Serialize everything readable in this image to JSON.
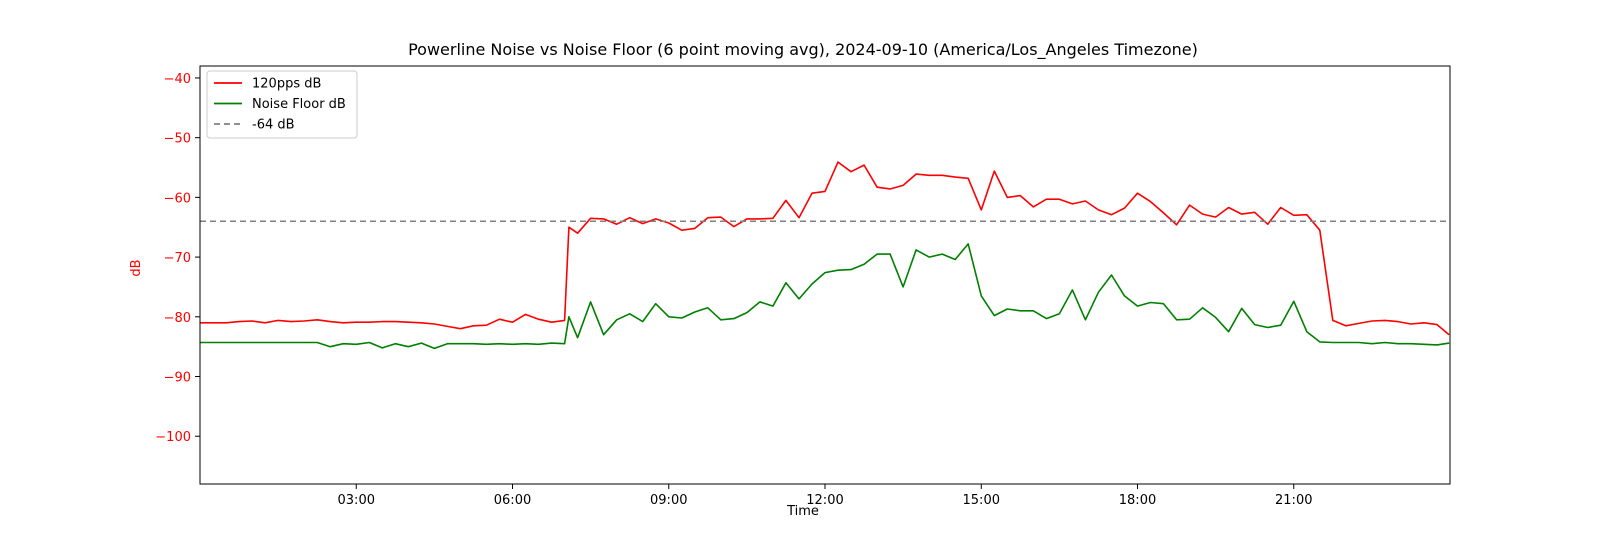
{
  "chart_data": {
    "type": "line",
    "title": "Powerline Noise vs Noise Floor (6 point moving avg), 2024-09-10 (America/Los_Angeles Timezone)",
    "xlabel": "Time",
    "ylabel": "dB",
    "xlim": [
      "00:00",
      "24:00"
    ],
    "ylim": [
      -108,
      -38
    ],
    "x_ticks": [
      "03:00",
      "06:00",
      "09:00",
      "12:00",
      "15:00",
      "18:00",
      "21:00"
    ],
    "y_ticks": [
      -40,
      -50,
      -60,
      -70,
      -80,
      -90,
      -100
    ],
    "y_tick_labels": [
      "−40",
      "−50",
      "−60",
      "−70",
      "−80",
      "−90",
      "−100"
    ],
    "grid": false,
    "legend_position": "top-left",
    "colors": {
      "ytick": "#ff0000",
      "ylabel": "#ff0000",
      "series_120pps": "#ff0000",
      "series_noise_floor": "#008000",
      "reference": "#808080"
    },
    "series": [
      {
        "name": "120pps dB",
        "color": "#ff0000",
        "x": [
          "00:00",
          "00:15",
          "00:30",
          "00:45",
          "01:00",
          "01:15",
          "01:30",
          "01:45",
          "02:00",
          "02:15",
          "02:30",
          "02:45",
          "03:00",
          "03:15",
          "03:30",
          "03:45",
          "04:00",
          "04:15",
          "04:30",
          "04:45",
          "05:00",
          "05:15",
          "05:30",
          "05:45",
          "06:00",
          "06:15",
          "06:30",
          "06:45",
          "07:00",
          "07:05",
          "07:15",
          "07:30",
          "07:45",
          "08:00",
          "08:15",
          "08:30",
          "08:45",
          "09:00",
          "09:15",
          "09:30",
          "09:45",
          "10:00",
          "10:15",
          "10:30",
          "10:45",
          "11:00",
          "11:15",
          "11:30",
          "11:45",
          "12:00",
          "12:15",
          "12:30",
          "12:45",
          "13:00",
          "13:15",
          "13:30",
          "13:45",
          "14:00",
          "14:15",
          "14:30",
          "14:45",
          "15:00",
          "15:15",
          "15:30",
          "15:45",
          "16:00",
          "16:15",
          "16:30",
          "16:45",
          "17:00",
          "17:15",
          "17:30",
          "17:45",
          "18:00",
          "18:15",
          "18:30",
          "18:45",
          "19:00",
          "19:15",
          "19:30",
          "19:45",
          "20:00",
          "20:15",
          "20:30",
          "20:45",
          "21:00",
          "21:15",
          "21:30",
          "21:45",
          "22:00",
          "22:15",
          "22:30",
          "22:45",
          "23:00",
          "23:15",
          "23:30",
          "23:45",
          "23:59"
        ],
        "values": [
          -81,
          -81,
          -81,
          -80.8,
          -80.7,
          -81,
          -80.6,
          -80.8,
          -80.7,
          -80.5,
          -80.8,
          -81,
          -80.9,
          -80.9,
          -80.8,
          -80.8,
          -80.9,
          -81,
          -81.2,
          -81.6,
          -82,
          -81.5,
          -81.4,
          -80.4,
          -80.9,
          -79.6,
          -80.4,
          -80.9,
          -80.6,
          -65,
          -66,
          -63.5,
          -63.6,
          -64.5,
          -63.4,
          -64.4,
          -63.6,
          -64.3,
          -65.5,
          -65.2,
          -63.4,
          -63.3,
          -64.9,
          -63.6,
          -63.6,
          -63.5,
          -60.5,
          -63.4,
          -59.3,
          -59,
          -54.1,
          -55.7,
          -54.6,
          -58.3,
          -58.6,
          -58,
          -56.1,
          -56.3,
          -56.3,
          -56.6,
          -56.8,
          -62.1,
          -55.6,
          -60,
          -59.7,
          -61.6,
          -60.3,
          -60.3,
          -61.1,
          -60.6,
          -62.1,
          -62.9,
          -61.8,
          -59.3,
          -60.7,
          -62.6,
          -64.6,
          -61.3,
          -62.8,
          -63.3,
          -61.7,
          -62.8,
          -62.5,
          -64.5,
          -61.7,
          -63,
          -62.9,
          -65.5,
          -80.6,
          -81.5,
          -81.1,
          -80.7,
          -80.6,
          -80.8,
          -81.2,
          -81,
          -81.3,
          -83
        ]
      },
      {
        "name": "Noise Floor dB",
        "color": "#008000",
        "x": [
          "00:00",
          "00:15",
          "00:30",
          "00:45",
          "01:00",
          "01:15",
          "01:30",
          "01:45",
          "02:00",
          "02:15",
          "02:30",
          "02:45",
          "03:00",
          "03:15",
          "03:30",
          "03:45",
          "04:00",
          "04:15",
          "04:30",
          "04:45",
          "05:00",
          "05:15",
          "05:30",
          "05:45",
          "06:00",
          "06:15",
          "06:30",
          "06:45",
          "07:00",
          "07:05",
          "07:15",
          "07:30",
          "07:45",
          "08:00",
          "08:15",
          "08:30",
          "08:45",
          "09:00",
          "09:15",
          "09:30",
          "09:45",
          "10:00",
          "10:15",
          "10:30",
          "10:45",
          "11:00",
          "11:15",
          "11:30",
          "11:45",
          "12:00",
          "12:15",
          "12:30",
          "12:45",
          "13:00",
          "13:15",
          "13:30",
          "13:45",
          "14:00",
          "14:15",
          "14:30",
          "14:45",
          "15:00",
          "15:15",
          "15:30",
          "15:45",
          "16:00",
          "16:15",
          "16:30",
          "16:45",
          "17:00",
          "17:15",
          "17:30",
          "17:45",
          "18:00",
          "18:15",
          "18:30",
          "18:45",
          "19:00",
          "19:15",
          "19:30",
          "19:45",
          "20:00",
          "20:15",
          "20:30",
          "20:45",
          "21:00",
          "21:15",
          "21:30",
          "21:45",
          "22:00",
          "22:15",
          "22:30",
          "22:45",
          "23:00",
          "23:15",
          "23:30",
          "23:45",
          "23:59"
        ],
        "values": [
          -84.3,
          -84.3,
          -84.3,
          -84.3,
          -84.3,
          -84.3,
          -84.3,
          -84.3,
          -84.3,
          -84.3,
          -85,
          -84.5,
          -84.6,
          -84.3,
          -85.2,
          -84.5,
          -85,
          -84.4,
          -85.3,
          -84.5,
          -84.5,
          -84.5,
          -84.6,
          -84.5,
          -84.6,
          -84.5,
          -84.6,
          -84.4,
          -84.5,
          -80,
          -83.5,
          -77.5,
          -83,
          -80.5,
          -79.5,
          -80.8,
          -77.8,
          -80,
          -80.2,
          -79.2,
          -78.5,
          -80.5,
          -80.3,
          -79.3,
          -77.5,
          -78.2,
          -74.3,
          -77,
          -74.5,
          -72.6,
          -72.2,
          -72.1,
          -71.2,
          -69.5,
          -69.5,
          -75,
          -68.8,
          -70,
          -69.5,
          -70.4,
          -67.8,
          -76.5,
          -79.8,
          -78.7,
          -79,
          -79,
          -80.3,
          -79.5,
          -75.5,
          -80.5,
          -75.9,
          -73,
          -76.5,
          -78.2,
          -77.6,
          -77.8,
          -80.5,
          -80.4,
          -78.5,
          -80.1,
          -82.5,
          -78.6,
          -81.3,
          -81.8,
          -81.4,
          -77.4,
          -82.5,
          -84.2,
          -84.3,
          -84.3,
          -84.3,
          -84.5,
          -84.3,
          -84.5,
          -84.5,
          -84.6,
          -84.7,
          -84.4
        ]
      },
      {
        "name": "-64 dB",
        "color": "#808080",
        "style": "dashed",
        "value": -64
      }
    ]
  }
}
